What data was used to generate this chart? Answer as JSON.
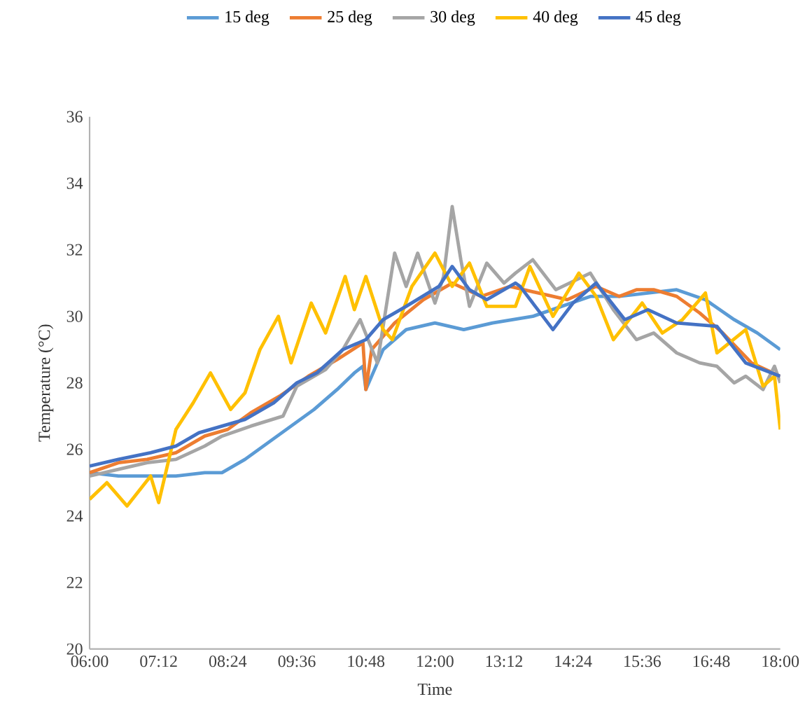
{
  "chart_data": {
    "type": "line",
    "xlabel": "Time",
    "ylabel": "Temperature (°C)",
    "legend": "top",
    "grid": false,
    "marker": "none",
    "line_style": "solid",
    "xlim": [
      6,
      18
    ],
    "ylim": [
      20,
      36
    ],
    "xticks": [
      {
        "value": 6,
        "label": "06:00"
      },
      {
        "value": 7.2,
        "label": "07:12"
      },
      {
        "value": 8.4,
        "label": "08:24"
      },
      {
        "value": 9.6,
        "label": "09:36"
      },
      {
        "value": 10.8,
        "label": "10:48"
      },
      {
        "value": 12,
        "label": "12:00"
      },
      {
        "value": 13.2,
        "label": "13:12"
      },
      {
        "value": 14.4,
        "label": "14:24"
      },
      {
        "value": 15.6,
        "label": "15:36"
      },
      {
        "value": 16.8,
        "label": "16:48"
      },
      {
        "value": 18,
        "label": "18:00"
      }
    ],
    "yticks": [
      20,
      22,
      24,
      26,
      28,
      30,
      32,
      34,
      36
    ],
    "series": [
      {
        "name": "15 deg",
        "color": "#5b9bd5",
        "x": [
          6,
          6.5,
          7,
          7.5,
          8,
          8.3,
          8.7,
          9.1,
          9.5,
          9.9,
          10.3,
          10.6,
          10.75,
          10.8,
          11.1,
          11.5,
          12,
          12.5,
          13,
          13.7,
          14.2,
          14.7,
          15.2,
          15.7,
          16.2,
          16.7,
          17.2,
          17.6,
          18
        ],
        "values": [
          25.3,
          25.2,
          25.2,
          25.2,
          25.3,
          25.3,
          25.7,
          26.2,
          26.7,
          27.2,
          27.8,
          28.3,
          28.5,
          27.8,
          29.0,
          29.6,
          29.8,
          29.6,
          29.8,
          30.0,
          30.3,
          30.6,
          30.6,
          30.7,
          30.8,
          30.5,
          29.9,
          29.5,
          29.0
        ]
      },
      {
        "name": "25 deg",
        "color": "#ed7d31",
        "x": [
          6,
          6.5,
          7,
          7.5,
          8,
          8.4,
          8.8,
          9.3,
          9.8,
          10.3,
          10.75,
          10.8,
          10.9,
          11.3,
          11.8,
          12.3,
          12.8,
          13.3,
          13.8,
          14.3,
          14.8,
          15.2,
          15.5,
          15.8,
          16.2,
          16.6,
          17,
          17.5,
          18
        ],
        "values": [
          25.3,
          25.6,
          25.7,
          25.9,
          26.4,
          26.6,
          27.1,
          27.6,
          28.2,
          28.7,
          29.2,
          27.8,
          29.0,
          29.8,
          30.5,
          31.0,
          30.6,
          30.9,
          30.7,
          30.5,
          30.9,
          30.6,
          30.8,
          30.8,
          30.6,
          30.1,
          29.5,
          28.6,
          28.2
        ]
      },
      {
        "name": "30 deg",
        "color": "#a5a5a5",
        "x": [
          6,
          6.5,
          7,
          7.5,
          8,
          8.3,
          8.8,
          9.36,
          9.6,
          10.1,
          10.4,
          10.7,
          11.0,
          11.3,
          11.5,
          11.7,
          12.0,
          12.15,
          12.3,
          12.45,
          12.6,
          12.9,
          13.2,
          13.4,
          13.7,
          14.1,
          14.7,
          15.1,
          15.5,
          15.8,
          16.2,
          16.6,
          16.9,
          17.2,
          17.4,
          17.7,
          17.9,
          18
        ],
        "values": [
          25.2,
          25.4,
          25.6,
          25.7,
          26.1,
          26.4,
          26.7,
          27.0,
          27.9,
          28.4,
          29.0,
          29.9,
          28.6,
          31.9,
          30.9,
          31.9,
          30.4,
          31.2,
          33.3,
          31.7,
          30.3,
          31.6,
          31.0,
          31.3,
          31.7,
          30.8,
          31.3,
          30.2,
          29.3,
          29.5,
          28.9,
          28.6,
          28.5,
          28.0,
          28.2,
          27.8,
          28.5,
          28.0
        ]
      },
      {
        "name": "40 deg",
        "color": "#ffc000",
        "x": [
          6,
          6.3,
          6.65,
          7.06,
          7.2,
          7.5,
          7.8,
          8.1,
          8.45,
          8.7,
          8.96,
          9.28,
          9.5,
          9.85,
          10.1,
          10.44,
          10.6,
          10.8,
          11.1,
          11.26,
          11.6,
          12.0,
          12.3,
          12.6,
          12.9,
          13.4,
          13.65,
          14.05,
          14.5,
          14.8,
          15.1,
          15.6,
          15.95,
          16.3,
          16.7,
          16.9,
          17.4,
          17.7,
          17.9,
          18
        ],
        "values": [
          24.5,
          25.0,
          24.3,
          25.2,
          24.4,
          26.6,
          27.4,
          28.3,
          27.2,
          27.7,
          29.0,
          30.0,
          28.6,
          30.4,
          29.5,
          31.2,
          30.2,
          31.2,
          29.6,
          29.3,
          30.9,
          31.9,
          30.9,
          31.6,
          30.3,
          30.3,
          31.5,
          30.0,
          31.3,
          30.6,
          29.3,
          30.4,
          29.5,
          29.9,
          30.7,
          28.9,
          29.6,
          27.9,
          28.2,
          26.6
        ]
      },
      {
        "name": "45 deg",
        "color": "#4472c4",
        "x": [
          6,
          6.5,
          7.06,
          7.5,
          7.9,
          8.3,
          8.7,
          9.2,
          9.6,
          9.95,
          10.4,
          10.8,
          11.1,
          11.5,
          12.07,
          12.3,
          12.6,
          12.9,
          13.4,
          13.48,
          14.05,
          14.4,
          14.8,
          15.3,
          15.7,
          16.2,
          16.9,
          17.4,
          17.7,
          18
        ],
        "values": [
          25.5,
          25.7,
          25.9,
          26.1,
          26.5,
          26.7,
          26.9,
          27.4,
          28.0,
          28.3,
          29.0,
          29.3,
          29.9,
          30.3,
          30.9,
          31.5,
          30.8,
          30.5,
          31.0,
          30.9,
          29.6,
          30.4,
          31.0,
          29.9,
          30.2,
          29.8,
          29.7,
          28.6,
          28.4,
          28.2
        ]
      }
    ]
  }
}
